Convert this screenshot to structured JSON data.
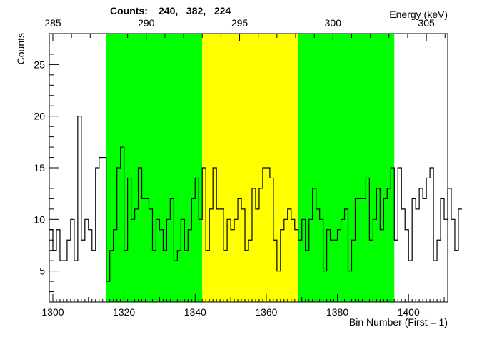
{
  "header": {
    "counts_prefix": "Counts:",
    "counts_values": "240,   382,   224"
  },
  "chart_data": {
    "type": "histogram",
    "title": "",
    "xlabel": "Bin Number (First = 1)",
    "ylabel": "Counts",
    "x2label": "Energy (keV)",
    "xlim": [
      1299,
      1411
    ],
    "ylim": [
      2,
      28
    ],
    "x_ticks": [
      1300,
      1320,
      1340,
      1360,
      1380,
      1400
    ],
    "x_tick_labels": [
      "1300",
      "1320",
      "1340",
      "1360",
      "1380",
      "1400"
    ],
    "y_ticks": [
      5,
      10,
      15,
      20,
      25
    ],
    "y_tick_labels": [
      "5",
      "10",
      "15",
      "20",
      "25"
    ],
    "energy_ticks": [
      285,
      290,
      295,
      300,
      305
    ],
    "energy_tick_labels": [
      "285",
      "290",
      "295",
      "300",
      "305"
    ],
    "energy_bin_start": 1300,
    "energy_bin_end": 1405,
    "energy_value_start": 285,
    "energy_value_end": 305,
    "regions": [
      {
        "name": "left-background",
        "from": 1315,
        "to": 1342,
        "color": "#00ff00"
      },
      {
        "name": "peak",
        "from": 1342,
        "to": 1369,
        "color": "#ffff00"
      },
      {
        "name": "right-background",
        "from": 1369,
        "to": 1396,
        "color": "#00ff00"
      }
    ],
    "bin_start": 1299,
    "counts": [
      9,
      7,
      9,
      6,
      6,
      8,
      10,
      6,
      20,
      8,
      10,
      9,
      7,
      15,
      16,
      16,
      4,
      7,
      9,
      15,
      17,
      7,
      14,
      10,
      11,
      15,
      12,
      12,
      11,
      7,
      10,
      9,
      7,
      10,
      12,
      6,
      7,
      10,
      7,
      9,
      12,
      14,
      10,
      15,
      7,
      11,
      15,
      11,
      11,
      7,
      10,
      9,
      10,
      12,
      11,
      7,
      8,
      13,
      11,
      13,
      15,
      15,
      14,
      8,
      5,
      9,
      10,
      11,
      10,
      9,
      8,
      10,
      7,
      10,
      13,
      11,
      10,
      5,
      9,
      8,
      8,
      9,
      10,
      11,
      5,
      8,
      12,
      12,
      12,
      14,
      8,
      10,
      13,
      9,
      12,
      13,
      15,
      8,
      15,
      11,
      9,
      6,
      12,
      11,
      13,
      12,
      14,
      15,
      6,
      8,
      12,
      10,
      13,
      10,
      7,
      11
    ],
    "line_color": "#000000"
  }
}
